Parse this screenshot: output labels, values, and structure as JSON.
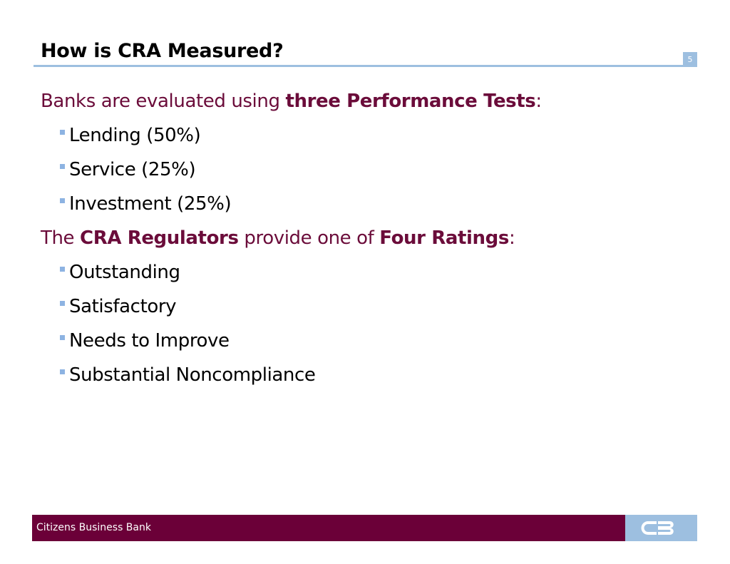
{
  "slide": {
    "title": "How is CRA Measured?",
    "page_number": "5"
  },
  "section1": {
    "intro": "Banks are evaluated using ",
    "emphasis": "three Performance Tests",
    "suffix": ":",
    "items": [
      "Lending (50%)",
      "Service (25%)",
      "Investment (25%)"
    ]
  },
  "section2": {
    "part1": "The ",
    "emphasis1": "CRA Regulators",
    "part2": " provide one of ",
    "emphasis2": "Four Ratings",
    "suffix": ":",
    "items": [
      "Outstanding",
      "Satisfactory",
      "Needs to Improve",
      "Substantial Noncompliance"
    ]
  },
  "footer": {
    "company": "Citizens Business Bank",
    "logo_icon": "cb-logo-icon"
  },
  "colors": {
    "accent_blue": "#9dbfe0",
    "brand_maroon": "#6b0038",
    "heading_maroon": "#6b0c3a"
  }
}
